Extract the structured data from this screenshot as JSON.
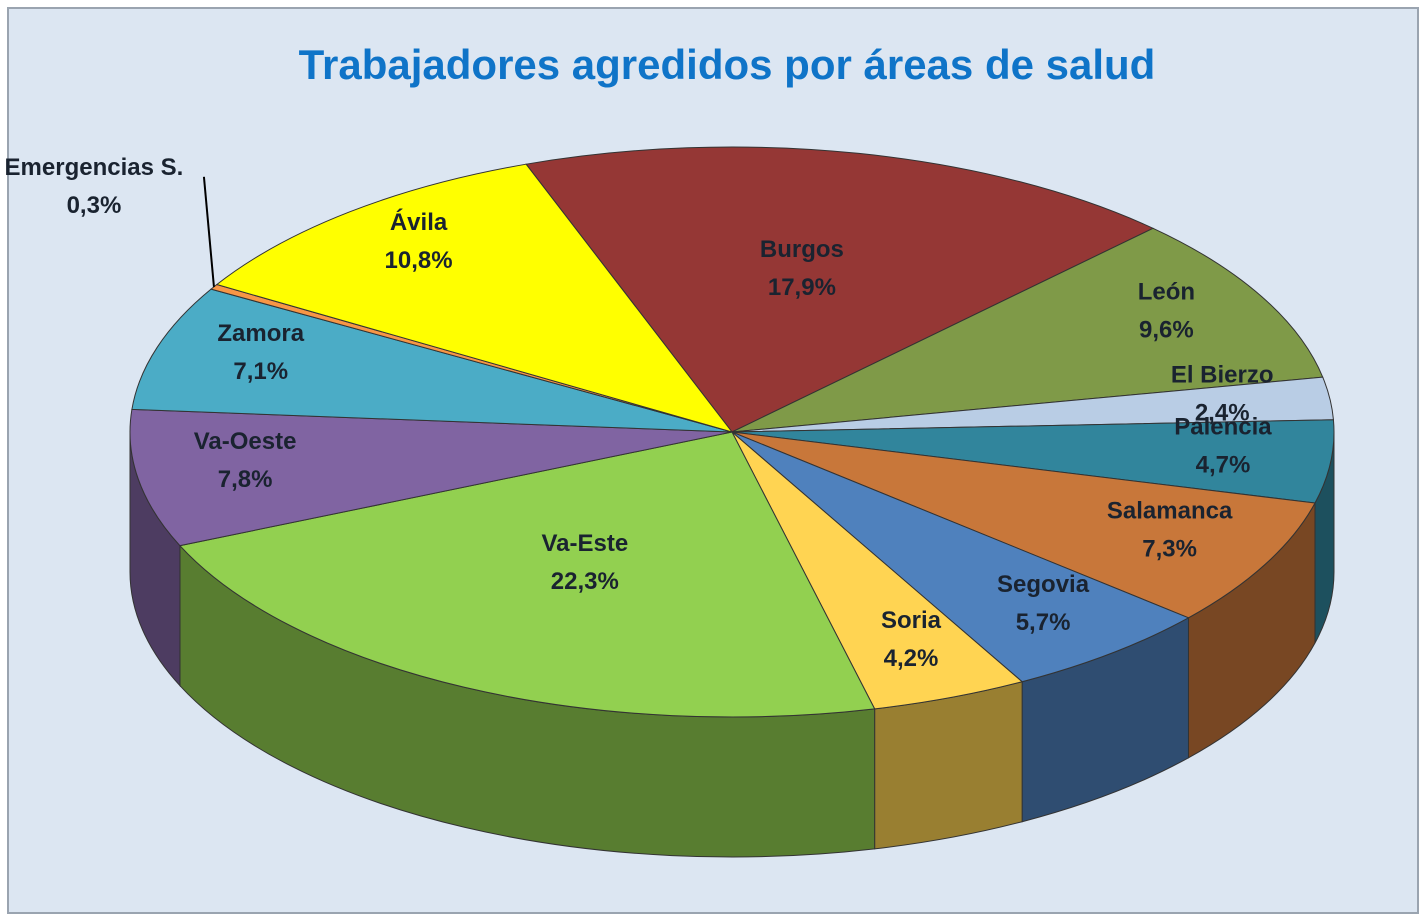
{
  "chart_data": {
    "type": "pie",
    "title": "Trabajadores agredidos por áreas de salud",
    "categories": [
      "Burgos",
      "León",
      "El Bierzo",
      "Palencia",
      "Salamanca",
      "Segovia",
      "Soria",
      "Va-Este",
      "Va-Oeste",
      "Zamora",
      "Emergencias S.",
      "Ávila"
    ],
    "values": [
      17.9,
      9.6,
      2.4,
      4.7,
      7.3,
      5.7,
      4.2,
      22.3,
      7.8,
      7.1,
      0.3,
      10.8
    ],
    "value_labels": [
      "17,9%",
      "9,6%",
      "2,4%",
      "4,7%",
      "7,3%",
      "5,7%",
      "4,2%",
      "22,3%",
      "7,8%",
      "7,1%",
      "0,3%",
      "10,8%"
    ],
    "colors": [
      "#953735",
      "#7f9a48",
      "#b9cde5",
      "#31859c",
      "#c8773a",
      "#4f81bd",
      "#ffd452",
      "#92d050",
      "#8064a2",
      "#4bacc6",
      "#f79646",
      "#ffff00"
    ]
  }
}
